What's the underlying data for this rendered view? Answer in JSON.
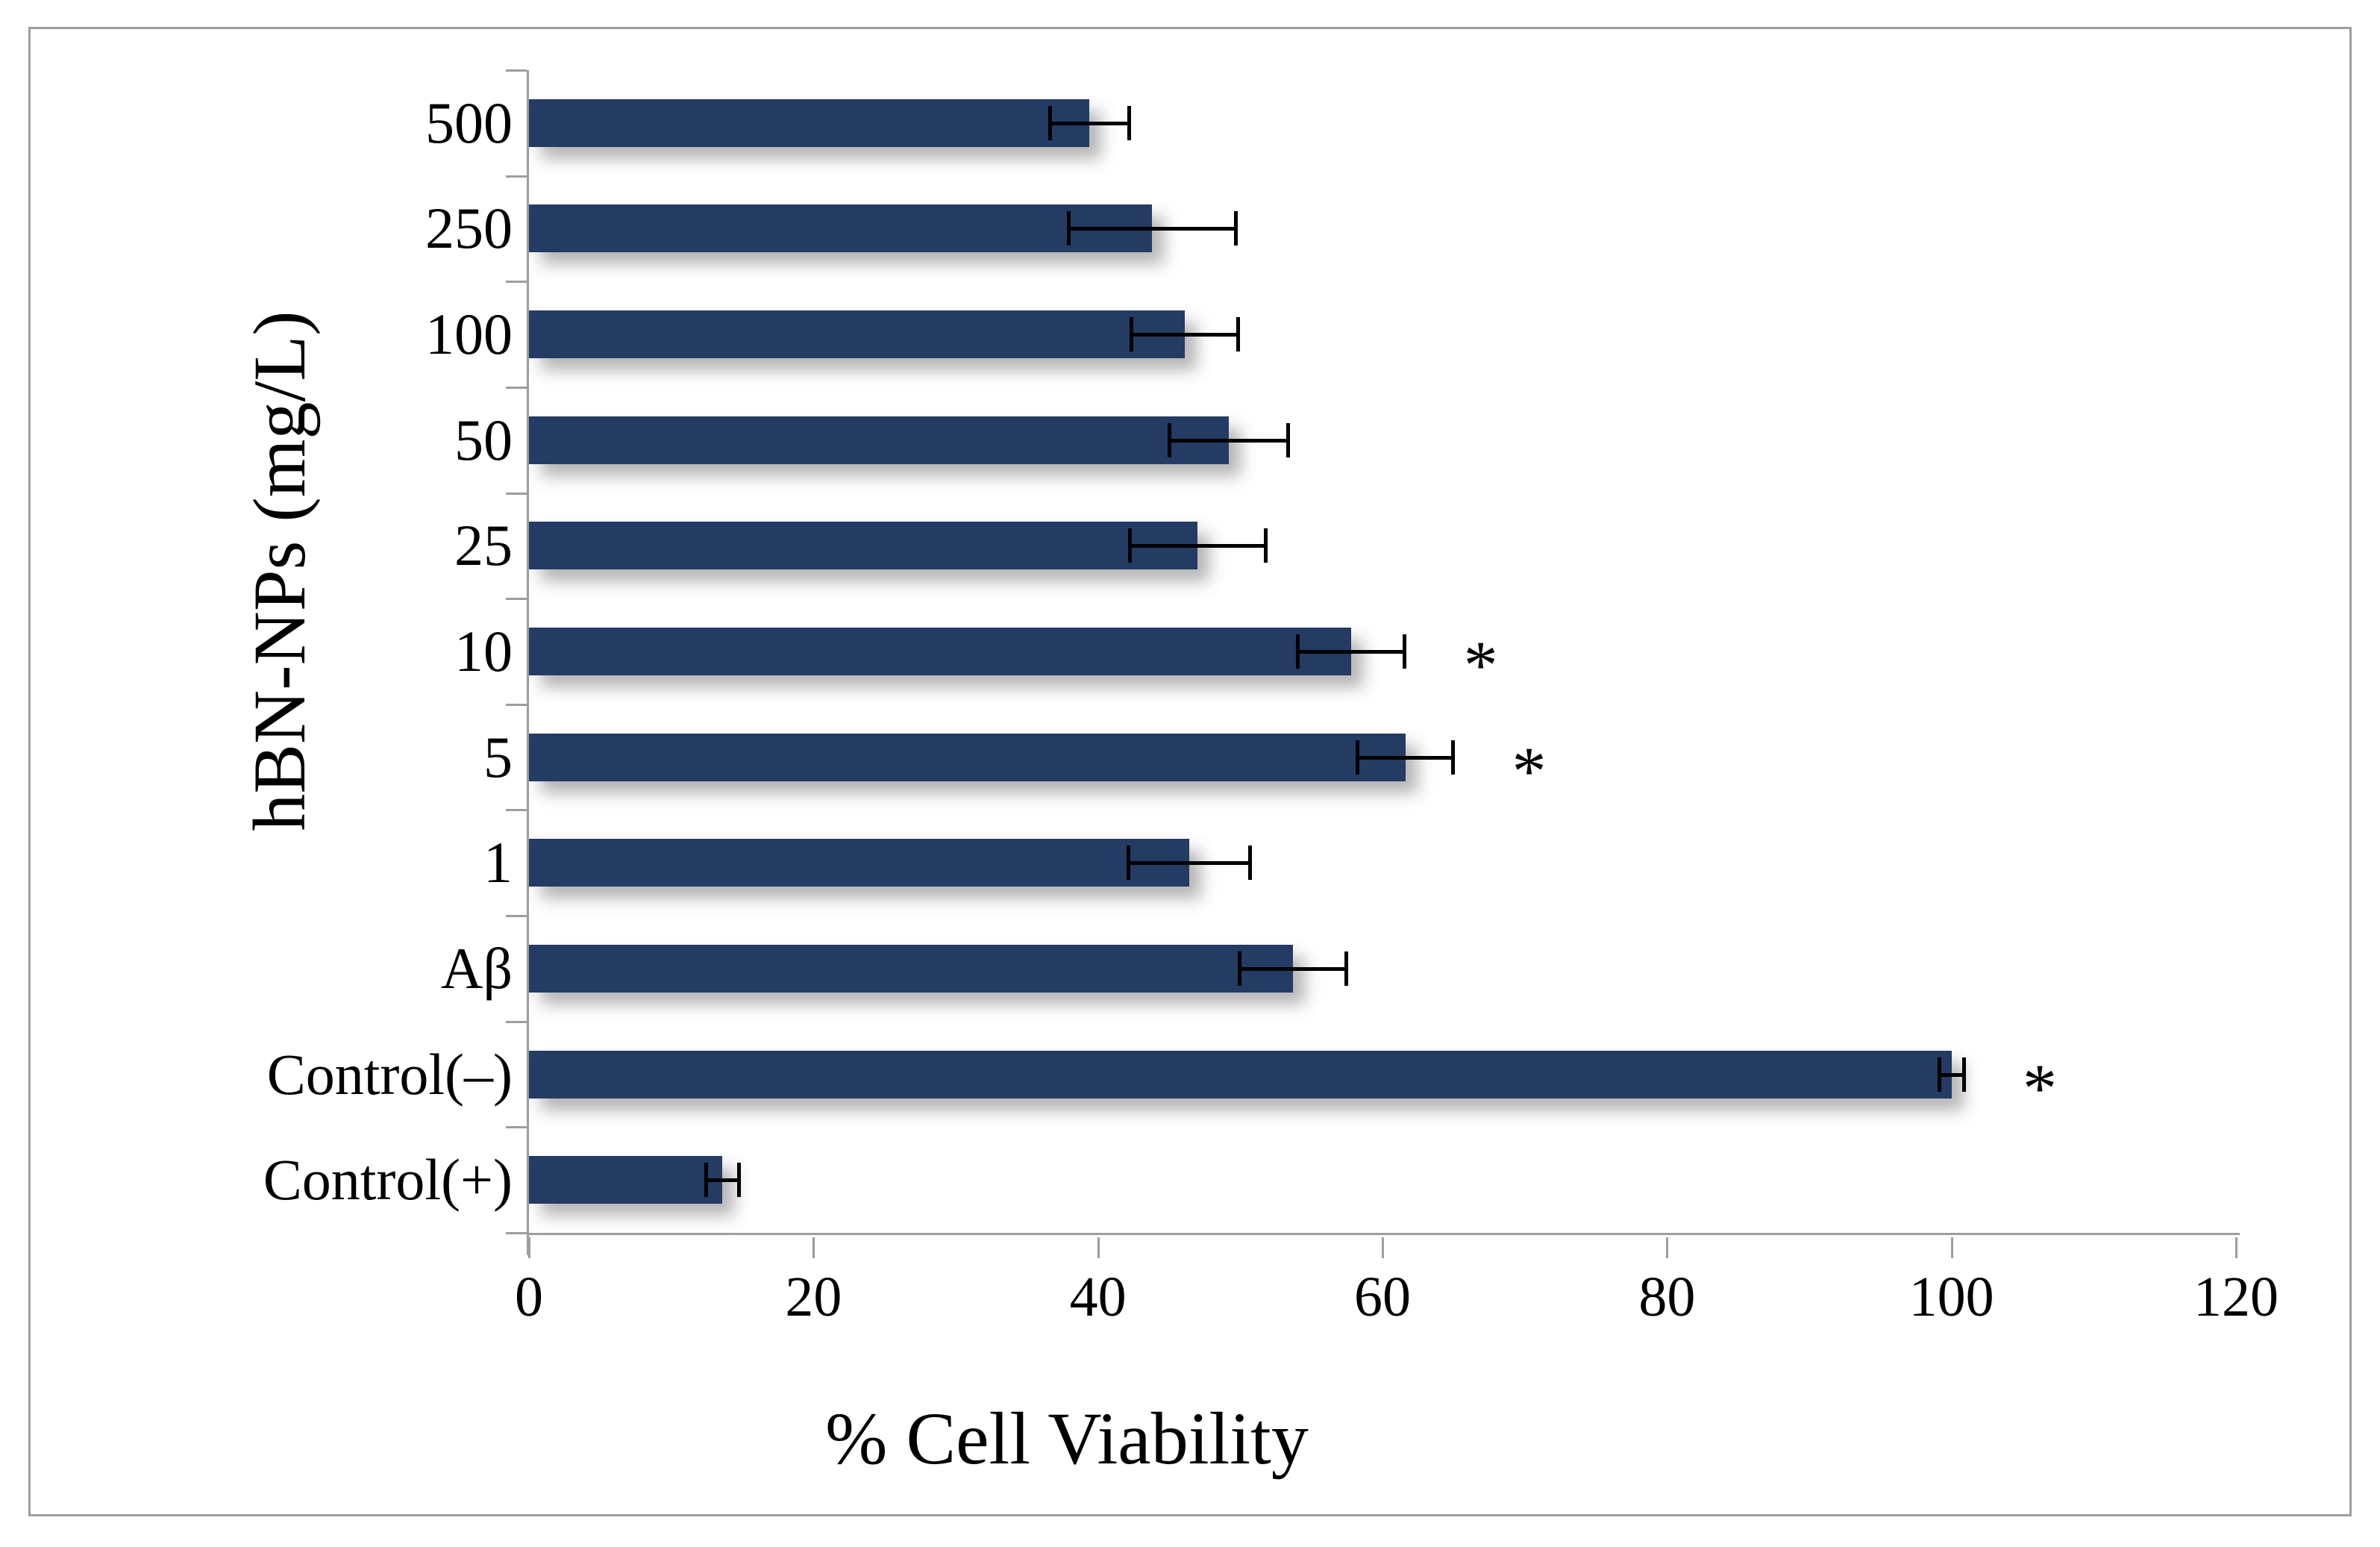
{
  "chart_data": {
    "type": "bar",
    "orientation": "horizontal",
    "title": "",
    "xlabel": "% Cell Viability",
    "ylabel": "hBN-NPs (mg/L)",
    "xlim": [
      0,
      120
    ],
    "xticks": [
      0,
      20,
      40,
      60,
      80,
      100,
      120
    ],
    "grid": false,
    "legend": null,
    "categories_top_to_bottom": [
      "500",
      "250",
      "100",
      "50",
      "25",
      "10",
      "5",
      "1",
      "Aβ",
      "Control(–)",
      "Control(+)"
    ],
    "values": [
      39.4,
      43.8,
      46.1,
      49.2,
      47.0,
      57.8,
      61.6,
      46.4,
      53.7,
      100.0,
      13.6
    ],
    "errors": [
      2.9,
      6.0,
      3.9,
      4.3,
      4.9,
      3.9,
      3.5,
      4.4,
      3.9,
      1.0,
      1.3
    ],
    "significant": [
      false,
      false,
      false,
      false,
      false,
      true,
      true,
      false,
      false,
      true,
      false
    ],
    "sig_marker": "*",
    "bar_color": "#243b63",
    "error_color": "#000000",
    "axis_color": "#9d9d9d",
    "border_color": "#9e9e9e"
  }
}
